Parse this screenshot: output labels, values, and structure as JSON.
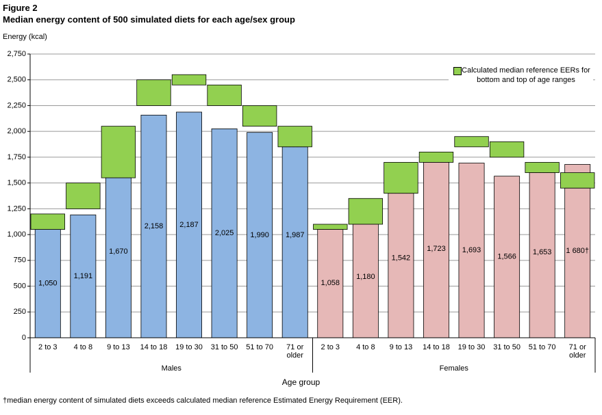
{
  "chart_data": {
    "type": "bar",
    "figure_label": "Figure 2",
    "title": "Median energy content of 500 simulated diets for each age/sex group",
    "y_axis_label": "Energy (kcal)",
    "x_axis_label": "Age group",
    "footnote": "†median energy content of simulated diets exceeds calculated median reference Estimated Energy Requirement (EER).",
    "ylim": [
      0,
      2750
    ],
    "yticks": [
      0,
      250,
      500,
      750,
      {
        "value": 1000,
        "label": "1,000"
      },
      {
        "value": 1250,
        "label": "1,250"
      },
      {
        "value": 1500,
        "label": "1,500"
      },
      {
        "value": 1750,
        "label": "1,750"
      },
      {
        "value": 2000,
        "label": "2,000"
      },
      {
        "value": 2250,
        "label": "2,250"
      },
      {
        "value": 2500,
        "label": "2,500"
      },
      {
        "value": 2750,
        "label": "2,750"
      }
    ],
    "grid": true,
    "legend_position": "top-right",
    "groups": [
      {
        "name": "Males",
        "color": "#8db4e2",
        "categories": [
          "2 to 3",
          "4 to 8",
          "9 to 13",
          "14 to 18",
          "19 to 30",
          "31 to 50",
          "51 to 70",
          "71 or older"
        ],
        "values": [
          1050,
          1191,
          1670,
          2158,
          2187,
          2025,
          1990,
          1987
        ],
        "value_labels": [
          "1,050",
          "1,191",
          "1,670",
          "2,158",
          "2,187",
          "2,025",
          "1,990",
          "1,987"
        ],
        "eer_low": [
          1050,
          1250,
          1550,
          2250,
          2450,
          2250,
          2050,
          1850
        ],
        "eer_high": [
          1200,
          1500,
          2050,
          2500,
          2550,
          2450,
          2250,
          2050
        ]
      },
      {
        "name": "Females",
        "color": "#e6b8b7",
        "categories": [
          "2 to 3",
          "4 to 8",
          "9 to 13",
          "14 to 18",
          "19 to 30",
          "31 to 50",
          "51 to 70",
          "71 or older"
        ],
        "values": [
          1058,
          1180,
          1542,
          1723,
          1693,
          1566,
          1653,
          1680
        ],
        "value_labels": [
          "1,058",
          "1,180",
          "1,542",
          "1,723",
          "1,693",
          "1,566",
          "1,653",
          "1 680†"
        ],
        "eer_low": [
          1050,
          1100,
          1400,
          1700,
          1850,
          1750,
          1600,
          1450
        ],
        "eer_high": [
          1100,
          1350,
          1700,
          1800,
          1950,
          1900,
          1700,
          1600
        ]
      }
    ],
    "eer_series": {
      "name": "Calculated median reference EERs for bottom and top of age ranges",
      "color": "#92d050"
    }
  }
}
